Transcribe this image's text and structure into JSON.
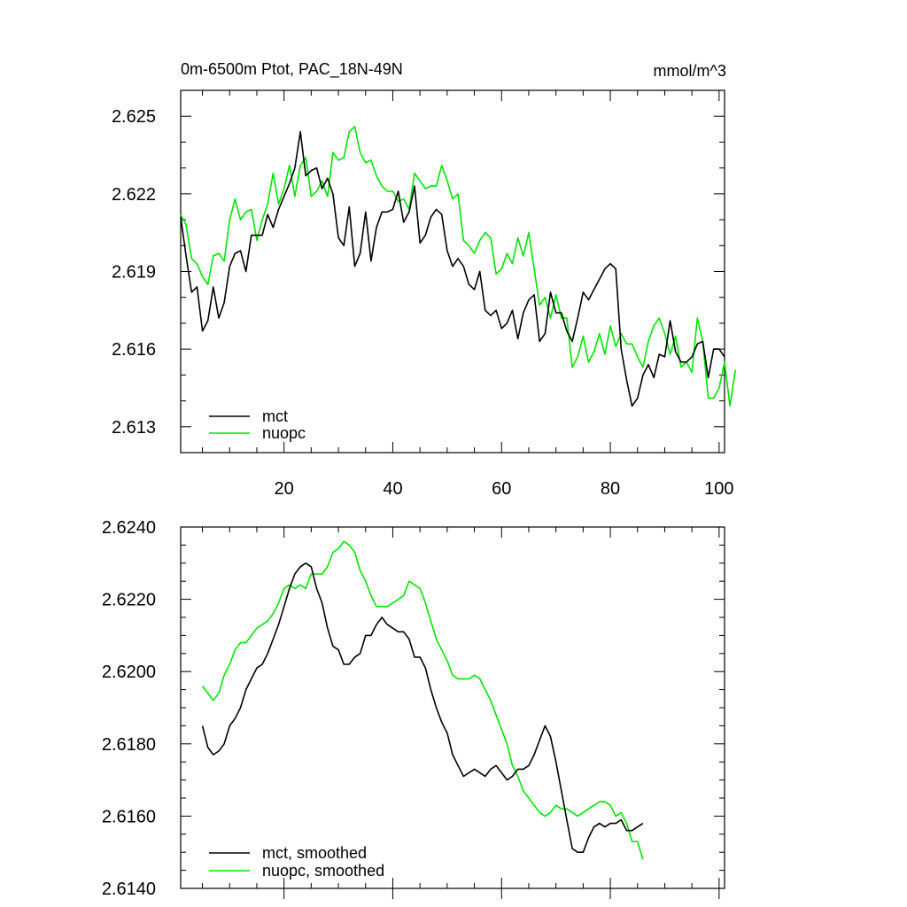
{
  "chart_data": [
    {
      "type": "line",
      "title": "0m-6500m Ptot, PAC_18N-49N",
      "units": "mmol/m^3",
      "xlabel": "",
      "ylabel": "",
      "xlim": [
        1,
        101
      ],
      "ylim": [
        2.612,
        2.626
      ],
      "xticks": [
        20,
        40,
        60,
        80,
        100
      ],
      "xtick_labels": [
        "20",
        "40",
        "60",
        "80",
        "100"
      ],
      "yticks": [
        2.613,
        2.616,
        2.619,
        2.622,
        2.625
      ],
      "ytick_labels": [
        "2.613",
        "2.616",
        "2.619",
        "2.622",
        "2.625"
      ],
      "grid": false,
      "legend": "bottom-left",
      "series": [
        {
          "name": "mct",
          "color": "#000000",
          "x_start": 1,
          "values": [
            2.6211,
            2.6196,
            2.6182,
            2.6184,
            2.6167,
            2.6171,
            2.6184,
            2.6172,
            2.6178,
            2.6192,
            2.6197,
            2.6198,
            2.619,
            2.6204,
            2.6204,
            2.6204,
            2.6212,
            2.6207,
            2.6214,
            2.6219,
            2.6224,
            2.623,
            2.6244,
            2.6227,
            2.6229,
            2.623,
            2.6222,
            2.6226,
            2.622,
            2.6203,
            2.62,
            2.6215,
            2.6192,
            2.6197,
            2.6213,
            2.6194,
            2.6207,
            2.6213,
            2.6213,
            2.6214,
            2.6221,
            2.6209,
            2.6213,
            2.6223,
            2.6201,
            2.6204,
            2.6211,
            2.6214,
            2.6212,
            2.6198,
            2.6192,
            2.6195,
            2.6192,
            2.6185,
            2.6183,
            2.619,
            2.6175,
            2.6173,
            2.6175,
            2.6168,
            2.617,
            2.6175,
            2.6164,
            2.6174,
            2.6179,
            2.6181,
            2.6163,
            2.6166,
            2.6182,
            2.6174,
            2.6174,
            2.6167,
            2.6163,
            2.6172,
            2.6182,
            2.6179,
            2.6183,
            2.6187,
            2.6191,
            2.6193,
            2.6191,
            2.616,
            2.6148,
            2.6138,
            2.6141,
            2.615,
            2.6154,
            2.6149,
            2.6158,
            2.6157,
            2.6171,
            2.6159,
            2.6155,
            2.6155,
            2.6157,
            2.6162,
            2.6163,
            2.6149,
            2.616,
            2.616,
            2.6157
          ]
        },
        {
          "name": "nuopc",
          "color": "#00e600",
          "x_start": 1,
          "values": [
            2.6212,
            2.6208,
            2.6195,
            2.6193,
            2.6188,
            2.6185,
            2.6196,
            2.6197,
            2.6194,
            2.621,
            2.6218,
            2.621,
            2.6213,
            2.6214,
            2.6202,
            2.621,
            2.6216,
            2.6228,
            2.6216,
            2.6222,
            2.6231,
            2.6219,
            2.6231,
            2.6234,
            2.6219,
            2.6221,
            2.6225,
            2.6219,
            2.6236,
            2.6233,
            2.6234,
            2.6244,
            2.6246,
            2.6236,
            2.6232,
            2.6233,
            2.6227,
            2.6223,
            2.6221,
            2.6221,
            2.6217,
            2.6218,
            2.6214,
            2.6228,
            2.6225,
            2.6222,
            2.6223,
            2.6223,
            2.6231,
            2.6225,
            2.6218,
            2.622,
            2.6202,
            2.62,
            2.6197,
            2.6202,
            2.6205,
            2.6203,
            2.6189,
            2.6191,
            2.6197,
            2.6193,
            2.6203,
            2.6196,
            2.6205,
            2.6191,
            2.6177,
            2.618,
            2.6172,
            2.6181,
            2.6172,
            2.6172,
            2.6153,
            2.6157,
            2.6165,
            2.6155,
            2.6159,
            2.6166,
            2.6158,
            2.6169,
            2.6161,
            2.6166,
            2.6162,
            2.6162,
            2.6157,
            2.6153,
            2.6163,
            2.6169,
            2.6172,
            2.6166,
            2.6158,
            2.6165,
            2.6153,
            2.6155,
            2.6151,
            2.6172,
            2.6163,
            2.6141,
            2.6141,
            2.6145,
            2.6155,
            2.6138,
            2.6152
          ]
        }
      ],
      "legend_entries": [
        "mct",
        "nuopc"
      ]
    },
    {
      "type": "line",
      "title": "",
      "xlabel": "",
      "ylabel": "",
      "xlim": [
        1,
        101
      ],
      "ylim": [
        2.614,
        2.624
      ],
      "xticks": [
        20,
        40,
        60,
        80,
        100
      ],
      "yticks": [
        2.614,
        2.616,
        2.618,
        2.62,
        2.622,
        2.624
      ],
      "ytick_labels": [
        "2.6140",
        "2.6160",
        "2.6180",
        "2.6200",
        "2.6220",
        "2.6240"
      ],
      "grid": false,
      "legend": "bottom-left",
      "series": [
        {
          "name": "mct, smoothed",
          "color": "#000000",
          "x_start": 5,
          "values": [
            2.6185,
            2.6179,
            2.6177,
            2.6178,
            2.618,
            2.6185,
            2.6187,
            2.619,
            2.6195,
            2.6198,
            2.6201,
            2.6202,
            2.6205,
            2.6209,
            2.6213,
            2.6218,
            2.6223,
            2.6227,
            2.6229,
            2.623,
            2.6229,
            2.6223,
            2.6219,
            2.6212,
            2.6207,
            2.6206,
            2.6202,
            2.6202,
            2.6204,
            2.6205,
            2.621,
            2.621,
            2.6213,
            2.6215,
            2.6213,
            2.6212,
            2.6211,
            2.6211,
            2.6209,
            2.6204,
            2.6204,
            2.6201,
            2.6195,
            2.619,
            2.6186,
            2.6183,
            2.6177,
            2.6174,
            2.6171,
            2.6172,
            2.6173,
            2.6172,
            2.6171,
            2.6173,
            2.6174,
            2.6172,
            2.617,
            2.6171,
            2.6173,
            2.6173,
            2.6174,
            2.6177,
            2.6181,
            2.6185,
            2.6182,
            2.6175,
            2.6167,
            2.6159,
            2.6151,
            2.615,
            2.615,
            2.6154,
            2.6157,
            2.6158,
            2.6157,
            2.6158,
            2.6158,
            2.6159,
            2.6156,
            2.6156,
            2.6157,
            2.6158
          ]
        },
        {
          "name": "nuopc, smoothed",
          "color": "#00e600",
          "x_start": 5,
          "values": [
            2.6196,
            2.6194,
            2.6192,
            2.6194,
            2.6199,
            2.6202,
            2.6206,
            2.6208,
            2.6208,
            2.621,
            2.6212,
            2.6213,
            2.6214,
            2.6216,
            2.6219,
            2.6223,
            2.6224,
            2.6223,
            2.6224,
            2.6223,
            2.6227,
            2.6227,
            2.6227,
            2.6229,
            2.6233,
            2.6234,
            2.6236,
            2.6235,
            2.6233,
            2.6228,
            2.6225,
            2.6221,
            2.6218,
            2.6218,
            2.6218,
            2.6219,
            2.622,
            2.6221,
            2.6225,
            2.6224,
            2.6223,
            2.6219,
            2.6214,
            2.6209,
            2.6206,
            2.6203,
            2.6199,
            2.6198,
            2.6198,
            2.6198,
            2.6199,
            2.6198,
            2.6195,
            2.6192,
            2.6188,
            2.6184,
            2.618,
            2.6174,
            2.6171,
            2.6167,
            2.6165,
            2.6163,
            2.6161,
            2.616,
            2.6161,
            2.6163,
            2.6162,
            2.6162,
            2.6161,
            2.616,
            2.6161,
            2.6162,
            2.6163,
            2.6164,
            2.6164,
            2.6163,
            2.616,
            2.6161,
            2.6158,
            2.6153,
            2.6153,
            2.6148
          ]
        }
      ],
      "legend_entries": [
        "mct, smoothed",
        "nuopc, smoothed"
      ]
    }
  ]
}
